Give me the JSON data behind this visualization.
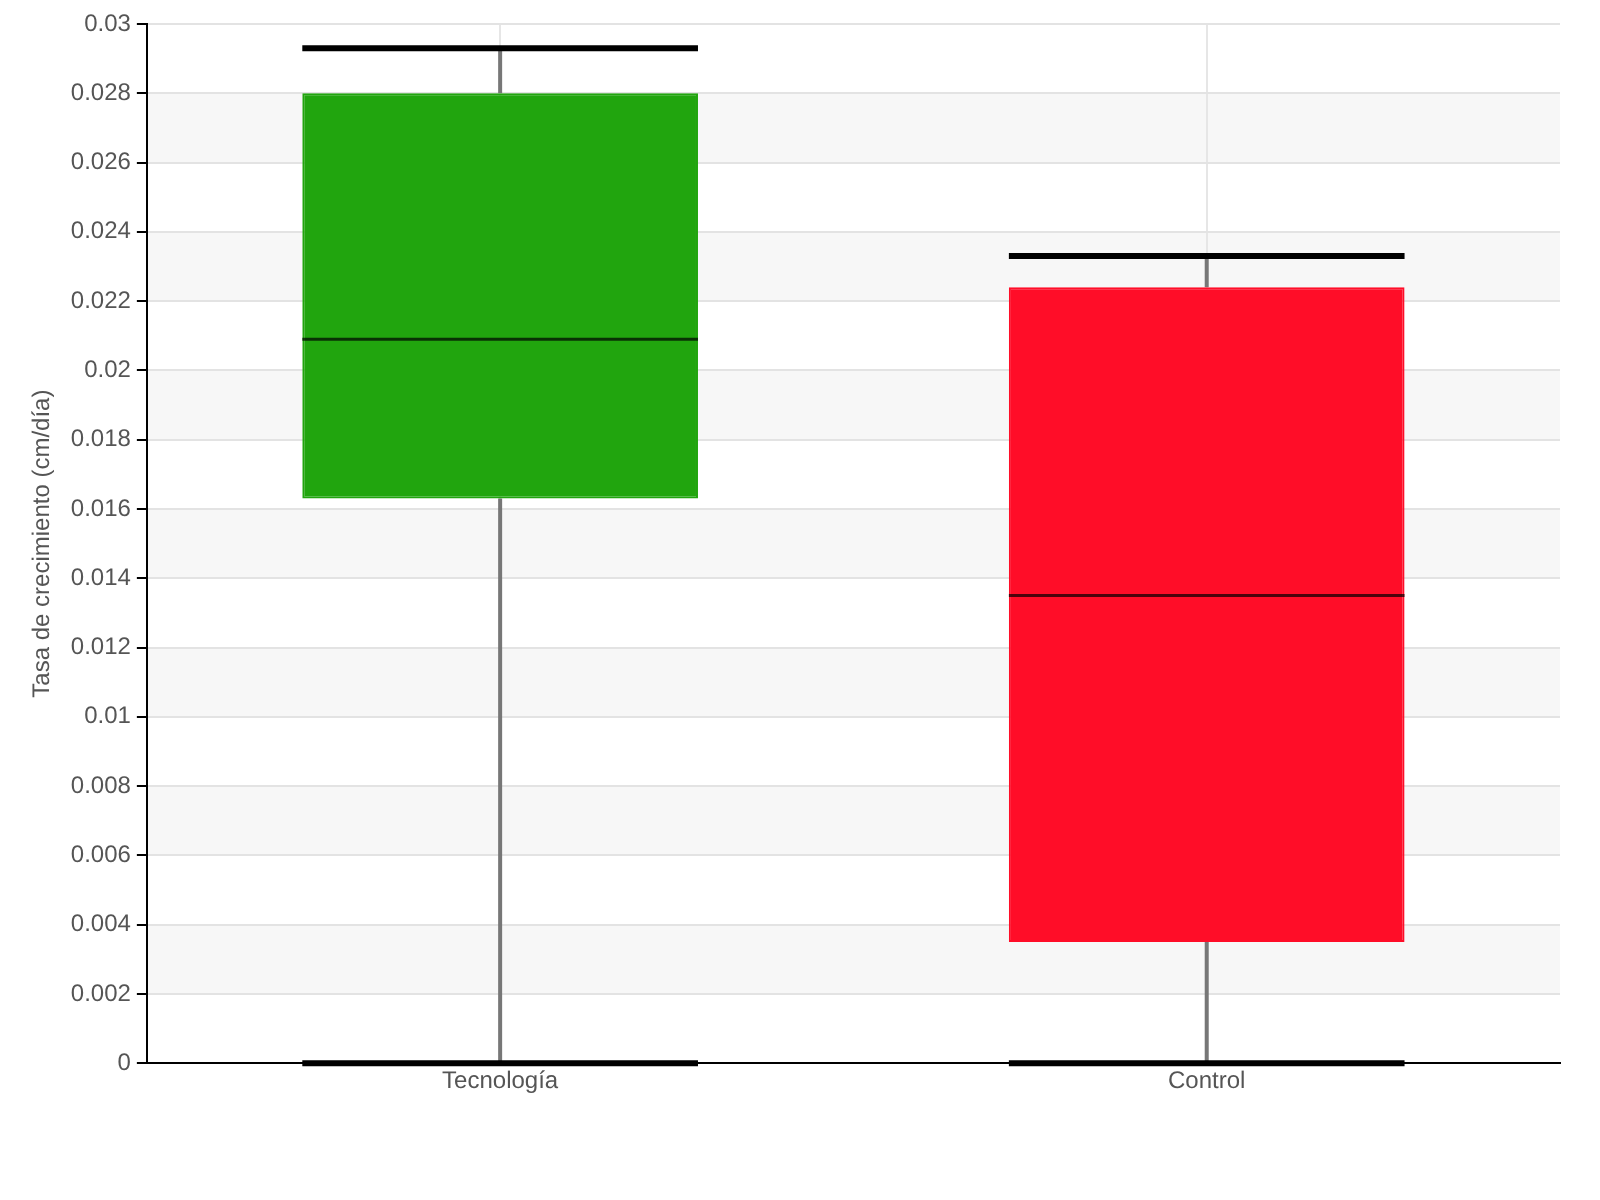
{
  "chart_data": {
    "type": "box",
    "ylabel": "Tasa de crecimiento (cm/día)",
    "categories": [
      "Tecnología",
      "Control"
    ],
    "boxes": [
      {
        "low": 0,
        "q1": 0.0163,
        "median": 0.0209,
        "q3": 0.028,
        "high": 0.0293
      },
      {
        "low": 0,
        "q1": 0.0035,
        "median": 0.0135,
        "q3": 0.0224,
        "high": 0.0233
      }
    ],
    "colors": [
      "#21a50e",
      "#ff0d28"
    ],
    "ylim": [
      0,
      0.03
    ],
    "yticks": [
      0,
      0.002,
      0.004,
      0.006,
      0.008,
      0.01,
      0.012,
      0.014,
      0.016,
      0.018,
      0.02,
      0.022,
      0.024,
      0.026,
      0.028,
      0.03
    ],
    "grid": true
  }
}
